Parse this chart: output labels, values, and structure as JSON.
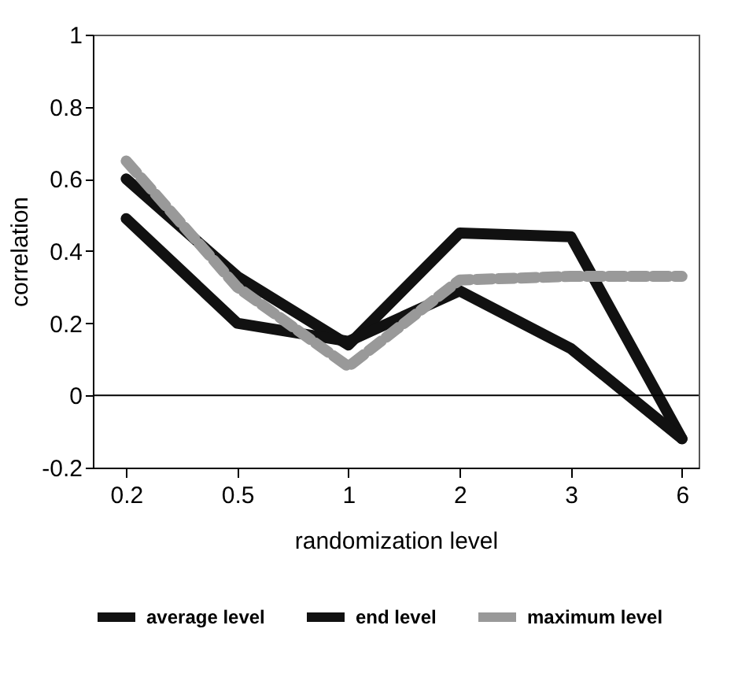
{
  "chart_data": {
    "type": "line",
    "xlabel": "randomization level",
    "ylabel": "correlation",
    "categories": [
      "0.2",
      "0.5",
      "1",
      "2",
      "3",
      "6"
    ],
    "series": [
      {
        "name": "average level",
        "color": "#111111",
        "values": [
          0.6,
          0.33,
          0.14,
          0.45,
          0.44,
          -0.12
        ]
      },
      {
        "name": "end level",
        "color": "#111111",
        "values": [
          0.49,
          0.2,
          0.15,
          0.29,
          0.13,
          -0.12
        ]
      },
      {
        "name": "maximum level",
        "color": "#999999",
        "line_style": "dashed",
        "values": [
          0.65,
          0.3,
          0.08,
          0.32,
          0.33,
          0.33
        ]
      }
    ],
    "ylim": [
      -0.2,
      1
    ],
    "yticks": [
      -0.2,
      0,
      0.2,
      0.4,
      0.6,
      0.8,
      1
    ],
    "ref_lines": [
      {
        "axis": "y",
        "value": 0
      }
    ],
    "grid": false,
    "legend": "bottom",
    "marker": "none"
  }
}
